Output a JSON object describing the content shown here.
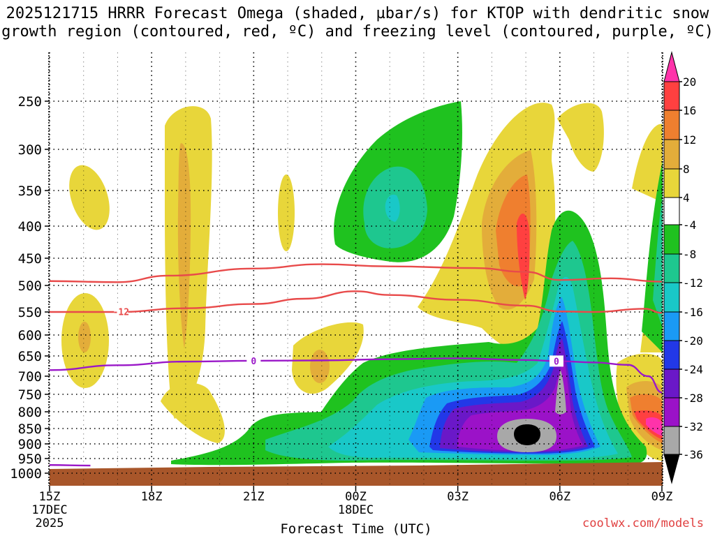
{
  "title_line1": "2025121715 HRRR Forecast Omega (shaded, µbar/s) for KTOP with dendritic snow",
  "title_line2": "growth region (contoured, red, ºC) and freezing level (contoured, purple, ºC)",
  "credit": "coolwx.com/models",
  "chart_data": {
    "type": "heatmap",
    "title": "2025121715 HRRR Forecast Omega (shaded, µbar/s) for KTOP with dendritic snow growth region (contoured, red, ºC) and freezing level (contoured, purple, ºC)",
    "xlabel": "Forecast Time (UTC)",
    "ylabel": "",
    "xlim_hours": [
      0,
      18
    ],
    "ylim_hpa": [
      1000,
      200
    ],
    "x_ticks": [
      {
        "hour": 0,
        "label": "15Z",
        "sub1": "17DEC",
        "sub2": "2025"
      },
      {
        "hour": 3,
        "label": "18Z",
        "sub1": "",
        "sub2": ""
      },
      {
        "hour": 6,
        "label": "21Z",
        "sub1": "",
        "sub2": ""
      },
      {
        "hour": 9,
        "label": "00Z",
        "sub1": "18DEC",
        "sub2": ""
      },
      {
        "hour": 12,
        "label": "03Z",
        "sub1": "",
        "sub2": ""
      },
      {
        "hour": 15,
        "label": "06Z",
        "sub1": "",
        "sub2": ""
      },
      {
        "hour": 18,
        "label": "09Z",
        "sub1": "",
        "sub2": ""
      }
    ],
    "y_ticks": [
      "250",
      "300",
      "350",
      "400",
      "450",
      "500",
      "550",
      "600",
      "650",
      "700",
      "750",
      "800",
      "850",
      "900",
      "950",
      "1000"
    ],
    "colorbar": {
      "labels": [
        "20",
        "16",
        "12",
        "8",
        "4",
        "-4",
        "-8",
        "-12",
        "-16",
        "-20",
        "-24",
        "-28",
        "-32",
        "-36"
      ],
      "bins": [
        {
          "range": "> 20",
          "color": "#ff33aa"
        },
        {
          "range": "16 to 20",
          "color": "#ff4040"
        },
        {
          "range": "12 to 16",
          "color": "#ef7f2f"
        },
        {
          "range": "8 to 12",
          "color": "#e3ad3a"
        },
        {
          "range": "4 to 8",
          "color": "#e8d63a"
        },
        {
          "range": "-4 to 4",
          "color": "#ffffff"
        },
        {
          "range": "-8 to -4",
          "color": "#1fc21f"
        },
        {
          "range": "-12 to -8",
          "color": "#1ec78f"
        },
        {
          "range": "-16 to -12",
          "color": "#19c8c8"
        },
        {
          "range": "-20 to -16",
          "color": "#1a9af5"
        },
        {
          "range": "-24 to -20",
          "color": "#2238e8"
        },
        {
          "range": "-28 to -24",
          "color": "#6a18c8"
        },
        {
          "range": "-32 to -28",
          "color": "#9b12c8"
        },
        {
          "range": "-36 to -32",
          "color": "#a8a8a8"
        },
        {
          "range": "< -36",
          "color": "#000000"
        }
      ]
    },
    "contours": {
      "dgz_upper_minus18C": {
        "color": "#e84a4a",
        "points": [
          [
            0,
            492
          ],
          [
            2,
            494
          ],
          [
            3.5,
            482
          ],
          [
            6,
            469
          ],
          [
            8,
            461
          ],
          [
            10,
            465
          ],
          [
            12.5,
            468
          ],
          [
            14,
            475
          ],
          [
            15,
            490
          ],
          [
            16.5,
            487
          ],
          [
            18,
            493
          ]
        ]
      },
      "dgz_lower_minus12C": {
        "color": "#e84a4a",
        "label": "-12",
        "label_hour": 2.1,
        "points": [
          [
            0,
            550
          ],
          [
            2,
            550
          ],
          [
            4,
            543
          ],
          [
            6,
            535
          ],
          [
            7.5,
            525
          ],
          [
            9,
            511
          ],
          [
            10,
            518
          ],
          [
            12,
            527
          ],
          [
            14,
            538
          ],
          [
            15,
            549
          ],
          [
            16,
            550
          ],
          [
            17.5,
            544
          ],
          [
            18,
            552
          ]
        ]
      },
      "freezing_level_0C": {
        "color": "#9a18c8",
        "label": "0",
        "label_hours": [
          6,
          14.9
        ],
        "points": [
          [
            0,
            685
          ],
          [
            2,
            673
          ],
          [
            4,
            664
          ],
          [
            6,
            662
          ],
          [
            8,
            661
          ],
          [
            10,
            658
          ],
          [
            12,
            656
          ],
          [
            14,
            660
          ],
          [
            15,
            663
          ],
          [
            16,
            666
          ],
          [
            17,
            672
          ],
          [
            17.6,
            700
          ],
          [
            18,
            745
          ]
        ]
      },
      "freezing_level_surface": {
        "color": "#9a18c8",
        "points": [
          [
            0,
            972
          ],
          [
            1.2,
            974
          ]
        ]
      }
    },
    "omega_features": [
      {
        "label": "Strong rising motion (<= -36 µbar/s)",
        "hour": 14.9,
        "pressure_hpa": 870
      },
      {
        "label": "Peak sinking motion (>= 16 µbar/s)",
        "hour": 14.9,
        "pressure_hpa": 430
      },
      {
        "label": "Sinking (>20 µbar/s) at end of period",
        "hour": 18,
        "pressure_hpa": 820
      }
    ]
  }
}
